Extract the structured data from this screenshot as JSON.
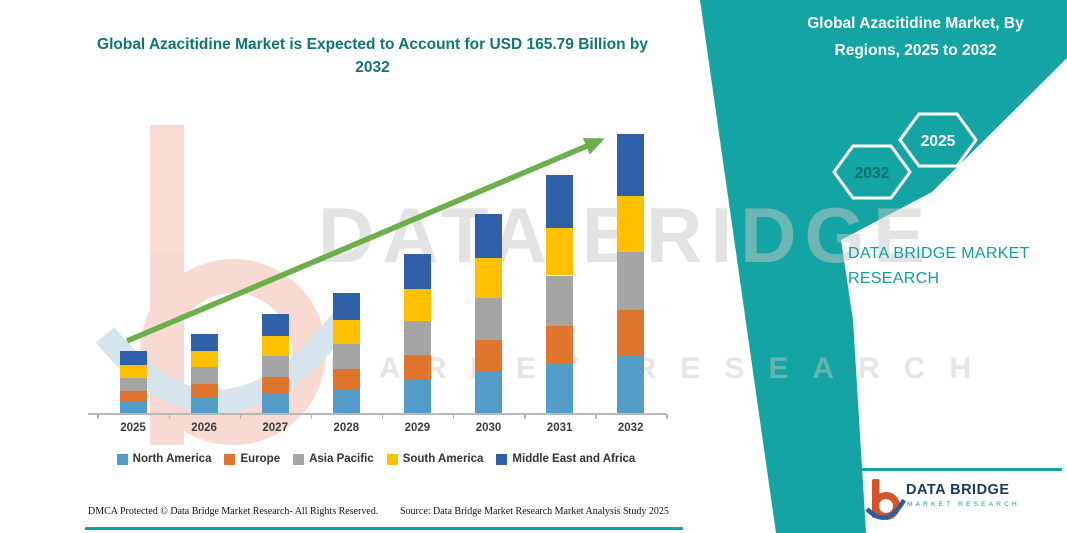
{
  "chart_data": {
    "type": "bar",
    "stacked": true,
    "title": "Global Azacitidine Market is Expected to Account for USD 165.79 Billion by 2032",
    "categories": [
      "2025",
      "2026",
      "2027",
      "2028",
      "2029",
      "2030",
      "2031",
      "2032"
    ],
    "series": [
      {
        "name": "North America",
        "color": "#539dc8",
        "values": [
          7.8,
          10.0,
          12.4,
          15.0,
          19.9,
          24.9,
          29.7,
          34.8
        ]
      },
      {
        "name": "Europe",
        "color": "#e0762e",
        "values": [
          6.0,
          7.6,
          9.5,
          11.5,
          15.2,
          18.9,
          22.6,
          26.5
        ]
      },
      {
        "name": "Asia Pacific",
        "color": "#a5a5a5",
        "values": [
          7.8,
          10.0,
          12.4,
          15.0,
          19.9,
          24.9,
          29.7,
          34.8
        ]
      },
      {
        "name": "South America",
        "color": "#ffc000",
        "values": [
          7.5,
          9.5,
          11.8,
          14.3,
          18.9,
          23.7,
          28.3,
          33.2
        ]
      },
      {
        "name": "Middle East and Africa",
        "color": "#3060a8",
        "values": [
          8.2,
          10.4,
          13.0,
          15.8,
          20.8,
          26.0,
          31.1,
          36.5
        ]
      }
    ],
    "totals_estimated": [
      37.3,
      47.5,
      59.1,
      71.6,
      94.7,
      118.4,
      141.4,
      165.79
    ],
    "xlabel": "",
    "ylabel": "",
    "ylim": [
      0,
      180
    ],
    "y_axis_visible": false,
    "gridlines": false,
    "legend_position": "bottom",
    "trend_arrow_color": "#6bb04a"
  },
  "side_panel": {
    "title": "Global Azacitidine Market, By Regions, 2025 to 2032",
    "hexagons": [
      {
        "label": "2032"
      },
      {
        "label": "2025"
      }
    ],
    "brand_caption": "DATA BRIDGE MARKET RESEARCH",
    "accent_color": "#12a3a3"
  },
  "watermark": {
    "line1": "DATA BRIDGE",
    "line2": "MARKET RESEARCH"
  },
  "logo": {
    "name": "DATA BRIDGE",
    "tagline": "MARKET RESEARCH"
  },
  "footer": {
    "dmca": "DMCA Protected © Data Bridge Market Research-  All Rights Reserved.",
    "source": "Source: Data Bridge Market Research  Market Analysis Study 2025"
  },
  "colors": {
    "accent_teal": "#12a3a3",
    "title_teal": "#0d7676",
    "arrow_green": "#6bb04a",
    "logo_navy": "#1d3a63",
    "logo_red": "#d85427",
    "logo_blue": "#2a5d9f"
  }
}
